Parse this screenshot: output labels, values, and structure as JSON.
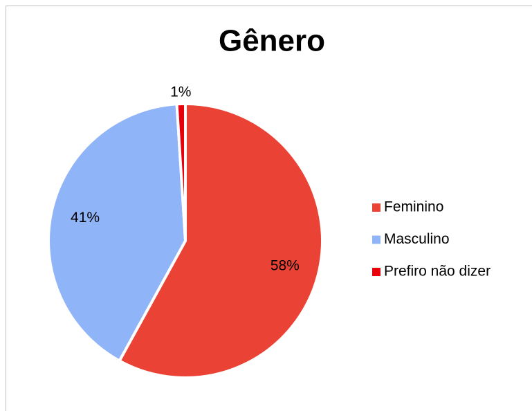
{
  "chart_data": {
    "type": "pie",
    "title": "Gênero",
    "categories": [
      "Feminino",
      "Masculino",
      "Prefiro não dizer"
    ],
    "values": [
      58,
      41,
      1
    ],
    "value_labels": [
      "58%",
      "41%",
      "1%"
    ],
    "colors": [
      "#ea4335",
      "#8fb4f8",
      "#e8000b"
    ],
    "legend": "right"
  }
}
